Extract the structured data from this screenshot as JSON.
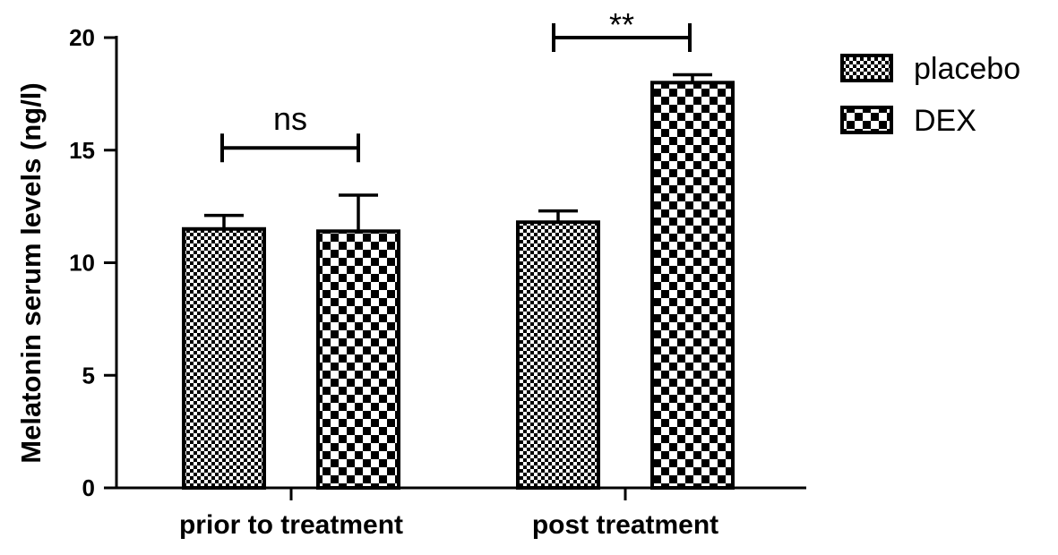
{
  "chart_data": {
    "type": "bar",
    "ylabel": "Melatonin serum levels (ng/l)",
    "xlabel": "",
    "ylim": [
      0,
      20
    ],
    "yticks": [
      0,
      5,
      10,
      15,
      20
    ],
    "categories": [
      "prior to treatment",
      "post treatment"
    ],
    "series": [
      {
        "name": "placebo",
        "values": [
          11.5,
          11.8
        ],
        "errors": [
          0.6,
          0.5
        ],
        "pattern": "fine-checker"
      },
      {
        "name": "DEX",
        "values": [
          11.4,
          18.0
        ],
        "errors": [
          1.6,
          0.35
        ],
        "pattern": "coarse-checker"
      }
    ],
    "annotations": [
      {
        "text": "ns",
        "category": "prior to treatment",
        "y": 15.1
      },
      {
        "text": "**",
        "category": "post treatment",
        "y": 20.0
      }
    ],
    "legend": {
      "placement": "top-right"
    },
    "grid": false
  }
}
